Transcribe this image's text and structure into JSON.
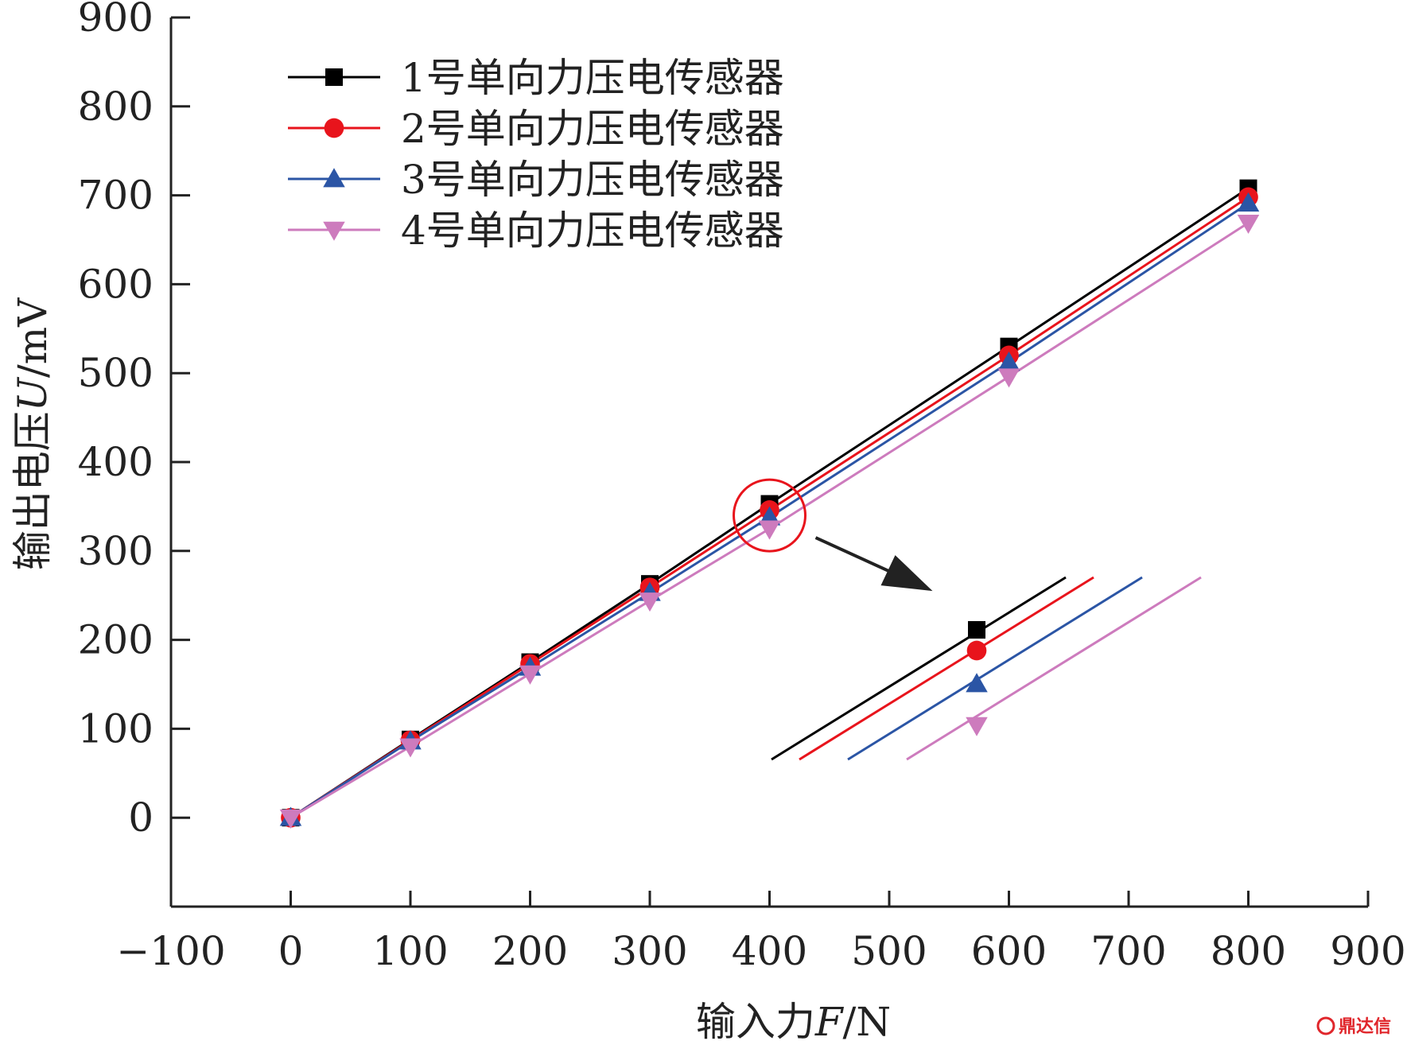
{
  "chart_data": {
    "type": "line",
    "x": [
      0,
      100,
      200,
      300,
      400,
      600,
      800
    ],
    "series": [
      {
        "name": "1号单向力压电传感器",
        "marker": "square",
        "color": "#000000",
        "values": [
          0,
          88,
          175,
          263,
          353,
          530,
          708
        ]
      },
      {
        "name": "2号单向力压电传感器",
        "marker": "circle",
        "color": "#e8141c",
        "values": [
          0,
          87,
          173,
          259,
          346,
          520,
          698
        ]
      },
      {
        "name": "3号单向力压电传感器",
        "marker": "triangle-up",
        "color": "#2b55a5",
        "values": [
          0,
          86,
          169,
          253,
          338,
          512,
          691
        ]
      },
      {
        "name": "4号单向力压电传感器",
        "marker": "triangle-down",
        "color": "#cd7bbd",
        "values": [
          0,
          80,
          162,
          244,
          325,
          496,
          669
        ]
      }
    ],
    "xlabel": {
      "prefix": "输入力",
      "var": "F",
      "unit": "/N"
    },
    "ylabel": {
      "prefix": "输出电压",
      "var": "U",
      "unit": "/mV"
    },
    "xlim": [
      -100,
      900
    ],
    "ylim": [
      -100,
      900
    ],
    "xticks": [
      -100,
      0,
      100,
      200,
      300,
      400,
      500,
      600,
      700,
      800,
      900
    ],
    "yticks": [
      0,
      100,
      200,
      300,
      400,
      500,
      600,
      700,
      800,
      900
    ],
    "xtick_labels": [
      "−100",
      "0",
      "100",
      "200",
      "300",
      "400",
      "500",
      "600",
      "700",
      "800",
      "900"
    ],
    "ytick_labels": [
      "0",
      "100",
      "200",
      "300",
      "400",
      "500",
      "600",
      "700",
      "800",
      "900"
    ],
    "legend_position": "top-left",
    "grid": false,
    "annotation": {
      "type": "zoom-inset",
      "focus_x": 400,
      "focus_y": 340,
      "circle_color": "#e8141c"
    }
  },
  "watermark": {
    "text": "鼎达信"
  }
}
